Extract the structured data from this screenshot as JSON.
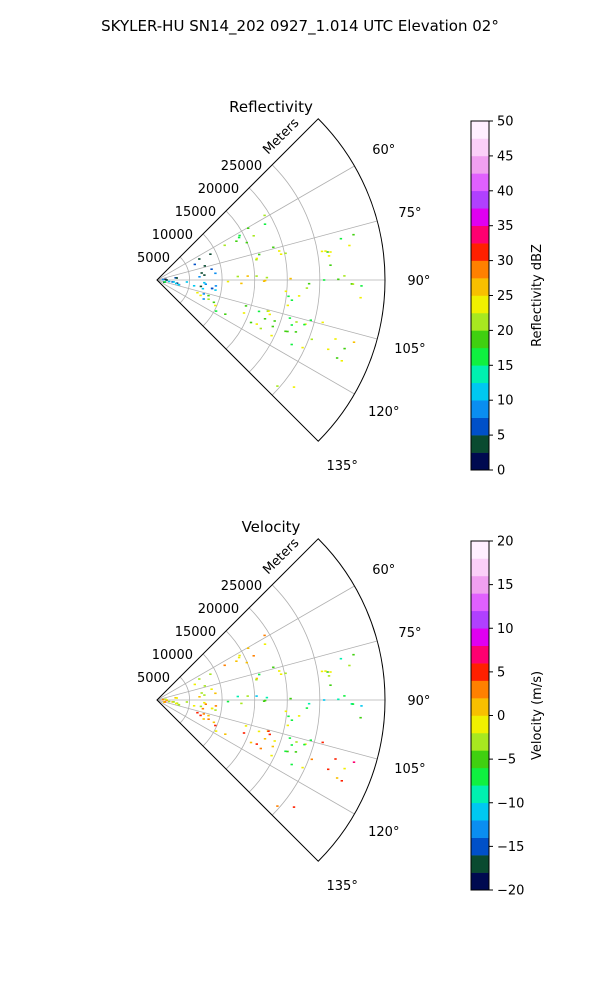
{
  "figure": {
    "suptitle": "SKYLER-HU  SN14_202  0927_1.014 UTC Elevation 02°"
  },
  "chart_data": [
    {
      "type": "polar-sector-heatmap",
      "title": "Reflectivity",
      "range_label": "Meters",
      "range_ticks": [
        5000,
        10000,
        15000,
        20000,
        25000
      ],
      "range_limits": [
        0,
        35000
      ],
      "azimuth_limits_deg": [
        45,
        135
      ],
      "azimuth_ticks_deg": [
        60,
        75,
        90,
        105,
        120,
        135
      ],
      "azimuth_tick_labels": [
        "60°",
        "75°",
        "90°",
        "105°",
        "120°",
        "135°"
      ],
      "grid": true,
      "colorbar": {
        "label": "Reflectivity dBZ",
        "limits": [
          0,
          50
        ],
        "ticks": [
          0,
          5,
          10,
          15,
          20,
          25,
          30,
          35,
          40,
          45,
          50
        ],
        "tick_labels": [
          "0",
          "5",
          "10",
          "15",
          "20",
          "25",
          "30",
          "35",
          "40",
          "45",
          "50"
        ],
        "colors": [
          "#000a50",
          "#0a4a30",
          "#0050c8",
          "#0a8ef0",
          "#00c8f0",
          "#00f0b0",
          "#10f040",
          "#40d010",
          "#a8e820",
          "#f0f000",
          "#f8c000",
          "#ff8000",
          "#ff2000",
          "#ff0070",
          "#e000f0",
          "#b040ff",
          "#e060ff",
          "#f0a0f0",
          "#fbd0f8",
          "#fff0ff"
        ]
      },
      "echo_regions": [
        {
          "az": [
            85,
            92
          ],
          "range": [
            10500,
            22000
          ],
          "value": 24
        },
        {
          "az": [
            72,
            80
          ],
          "range": [
            14500,
            22500
          ],
          "value": 21
        },
        {
          "az": [
            58,
            67
          ],
          "range": [
            11000,
            20000
          ],
          "value": 19
        },
        {
          "az": [
            88,
            96
          ],
          "range": [
            22000,
            33500
          ],
          "value": 20
        },
        {
          "az": [
            76,
            86
          ],
          "range": [
            23000,
            31500
          ],
          "value": 20
        },
        {
          "az": [
            103,
            114
          ],
          "range": [
            25000,
            31500
          ],
          "value": 22
        },
        {
          "az": [
            92,
            118
          ],
          "range": [
            19000,
            25000
          ],
          "value": 20
        },
        {
          "az": [
            105,
            118
          ],
          "range": [
            5000,
            19000
          ],
          "value": 20
        },
        {
          "az": [
            62,
            112
          ],
          "range": [
            6000,
            9000
          ],
          "value": 7
        },
        {
          "az": [
            75,
            105
          ],
          "range": [
            500,
            3500
          ],
          "value": 6
        },
        {
          "az": [
            128,
            133
          ],
          "range": [
            22500,
            26500
          ],
          "value": 22
        },
        {
          "az": [
            92,
            102
          ],
          "range": [
            1000,
            9000
          ],
          "value": 13
        }
      ]
    },
    {
      "type": "polar-sector-heatmap",
      "title": "Velocity",
      "range_label": "Meters",
      "range_ticks": [
        5000,
        10000,
        15000,
        20000,
        25000
      ],
      "range_limits": [
        0,
        35000
      ],
      "azimuth_limits_deg": [
        45,
        135
      ],
      "azimuth_ticks_deg": [
        60,
        75,
        90,
        105,
        120,
        135
      ],
      "azimuth_tick_labels": [
        "60°",
        "75°",
        "90°",
        "105°",
        "120°",
        "135°"
      ],
      "grid": true,
      "colorbar": {
        "label": "Velocity (m/s)",
        "limits": [
          -20,
          20
        ],
        "ticks": [
          -20,
          -15,
          -10,
          -5,
          0,
          5,
          10,
          15,
          20
        ],
        "tick_labels": [
          "−20",
          "−15",
          "−10",
          "−5",
          "0",
          "5",
          "10",
          "15",
          "20"
        ],
        "colors": [
          "#000a50",
          "#0a4a30",
          "#0050c8",
          "#0a8ef0",
          "#00c8f0",
          "#00f0b0",
          "#10f040",
          "#40d010",
          "#a8e820",
          "#f0f000",
          "#f8c000",
          "#ff8000",
          "#ff2000",
          "#ff0070",
          "#e000f0",
          "#b040ff",
          "#e060ff",
          "#f0a0f0",
          "#fbd0f8",
          "#fff0ff"
        ]
      },
      "echo_regions": [
        {
          "az": [
            85,
            92
          ],
          "range": [
            10500,
            22000
          ],
          "value": -7
        },
        {
          "az": [
            72,
            80
          ],
          "range": [
            14500,
            22500
          ],
          "value": -3
        },
        {
          "az": [
            58,
            67
          ],
          "range": [
            11000,
            20000
          ],
          "value": 1
        },
        {
          "az": [
            88,
            96
          ],
          "range": [
            22000,
            33500
          ],
          "value": -8
        },
        {
          "az": [
            76,
            86
          ],
          "range": [
            23000,
            31500
          ],
          "value": -5
        },
        {
          "az": [
            103,
            114
          ],
          "range": [
            25000,
            31500
          ],
          "value": 3
        },
        {
          "az": [
            92,
            118
          ],
          "range": [
            19000,
            25000
          ],
          "value": -4
        },
        {
          "az": [
            105,
            118
          ],
          "range": [
            5000,
            19000
          ],
          "value": 2
        },
        {
          "az": [
            62,
            112
          ],
          "range": [
            6000,
            9000
          ],
          "value": 0
        },
        {
          "az": [
            75,
            105
          ],
          "range": [
            500,
            3500
          ],
          "value": 1
        },
        {
          "az": [
            128,
            133
          ],
          "range": [
            22500,
            26500
          ],
          "value": 4
        },
        {
          "az": [
            92,
            102
          ],
          "range": [
            1000,
            9000
          ],
          "value": 0
        }
      ]
    }
  ]
}
